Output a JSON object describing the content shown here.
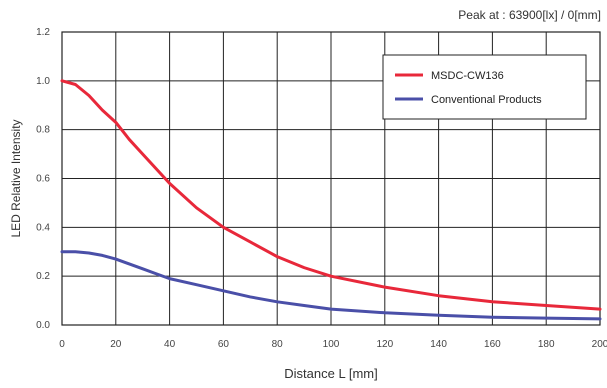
{
  "chart_data": {
    "type": "line",
    "xlabel": "Distance L [mm]",
    "ylabel": "LED Relative Intensity",
    "annotation": "Peak at : 63900[lx] / 0[mm]",
    "xlim": [
      0,
      200
    ],
    "ylim": [
      0,
      1.2
    ],
    "xticks": [
      0,
      20,
      40,
      60,
      80,
      100,
      120,
      140,
      160,
      180,
      200
    ],
    "yticks": [
      0.0,
      0.2,
      0.4,
      0.6,
      0.8,
      1.0,
      1.2
    ],
    "grid": true,
    "legend_position": "top-right",
    "series": [
      {
        "name": "MSDC-CW136",
        "color": "#e8283a",
        "x": [
          0,
          5,
          10,
          15,
          20,
          25,
          30,
          35,
          40,
          50,
          60,
          70,
          80,
          90,
          100,
          120,
          140,
          160,
          180,
          200
        ],
        "y": [
          1.0,
          0.985,
          0.94,
          0.88,
          0.83,
          0.76,
          0.7,
          0.64,
          0.58,
          0.48,
          0.4,
          0.34,
          0.28,
          0.235,
          0.2,
          0.155,
          0.12,
          0.095,
          0.08,
          0.065
        ]
      },
      {
        "name": "Conventional Products",
        "color": "#4a4fa8",
        "x": [
          0,
          5,
          10,
          15,
          20,
          25,
          30,
          35,
          40,
          50,
          60,
          70,
          80,
          90,
          100,
          120,
          140,
          160,
          180,
          200
        ],
        "y": [
          0.3,
          0.3,
          0.295,
          0.285,
          0.27,
          0.25,
          0.23,
          0.21,
          0.19,
          0.165,
          0.14,
          0.115,
          0.095,
          0.08,
          0.065,
          0.05,
          0.04,
          0.032,
          0.028,
          0.025
        ]
      }
    ]
  }
}
